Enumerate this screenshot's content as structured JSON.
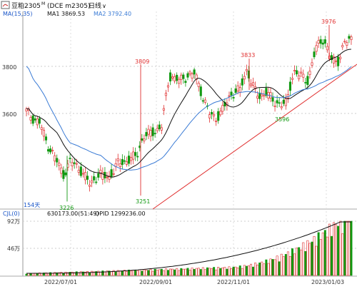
{
  "header": {
    "symbol_label": "豆粕2305",
    "symbol_superscript": "M",
    "exchange_code": "(DCE m2305)",
    "period_label": "日线",
    "dropdown_glyph": "∨"
  },
  "ma_legend": {
    "params": "MA(15,35)",
    "ma1_label": "MA1 3869.53",
    "ma2_label": "MA2 3792.40"
  },
  "volume_legend": {
    "params": "CJL(0)",
    "volume_label": "630173.00(51:49)",
    "opid_label": "OPID 1299236.00"
  },
  "colors": {
    "up": "#e03030",
    "down": "#119911",
    "ma1": "#111111",
    "ma2": "#3a7bd5",
    "trend": "#e03030",
    "annotation_up": "#e03030",
    "annotation_down": "#119911",
    "legend_blue": "#1a56c8",
    "axis_text": "#333333",
    "grid": "#cccccc"
  },
  "chart_data": [
    {
      "type": "candlestick",
      "y_ticks": [
        "3800",
        "3600"
      ],
      "x_ticks": [
        "2022/07/01",
        "2022/09/01",
        "2022/11/01",
        "2023/01/03"
      ],
      "annotations": {
        "high_3809": "3809",
        "low_3251": "3251",
        "low_3226": "3226",
        "high_3833": "3833",
        "low_3596": "3596",
        "high_3976": "3976"
      },
      "period_count_label": "154天",
      "series": [
        {
          "name": "MA1",
          "value": 3869.53
        },
        {
          "name": "MA2",
          "value": 3792.4
        }
      ],
      "trend_line": {
        "from_price": 3251,
        "to_price": 3830
      }
    },
    {
      "type": "bar",
      "y_ticks": [
        "92万",
        "46万"
      ],
      "series": [
        {
          "name": "CJL",
          "value": 630173.0
        },
        {
          "name": "OPID",
          "value": 1299236.0
        }
      ]
    }
  ]
}
